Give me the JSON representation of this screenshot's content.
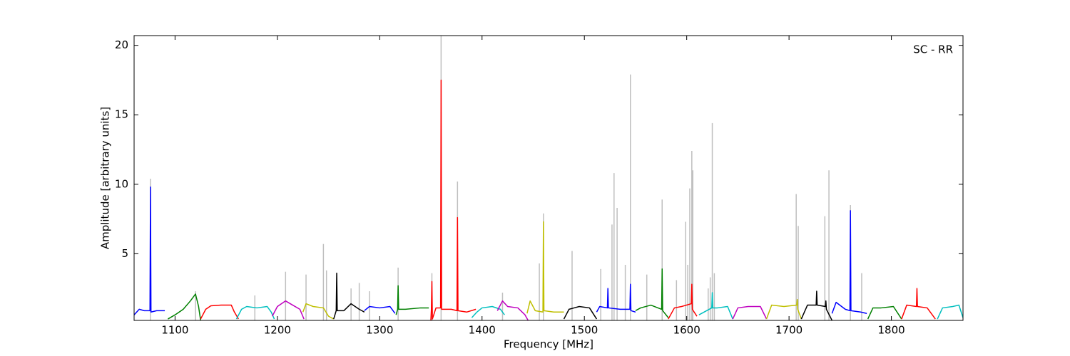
{
  "chart_data": {
    "type": "line",
    "xlabel": "Frequency [MHz]",
    "ylabel": "Amplitude [arbitrary units]",
    "annotation": "SC - RR",
    "xlim": [
      1060,
      1870
    ],
    "ylim": [
      0.2,
      20.7
    ],
    "xticks": [
      1100,
      1200,
      1300,
      1400,
      1500,
      1600,
      1700,
      1800
    ],
    "yticks": [
      5,
      10,
      15,
      20
    ],
    "series": [
      {
        "color": "#bfbfbf",
        "style": "spikes",
        "x": [
          1076,
          1120,
          1178,
          1208,
          1228,
          1245,
          1248,
          1272,
          1280,
          1290,
          1318,
          1351,
          1360,
          1376,
          1420,
          1456,
          1460,
          1488,
          1516,
          1527,
          1529,
          1532,
          1540,
          1545,
          1561,
          1576,
          1590,
          1599,
          1601,
          1603,
          1605,
          1606,
          1621,
          1623,
          1625,
          1627,
          1707,
          1709,
          1735,
          1739,
          1760,
          1771
        ],
        "values": [
          10.4,
          2.3,
          2.0,
          3.7,
          3.5,
          5.7,
          3.8,
          2.5,
          2.9,
          2.3,
          4.0,
          3.6,
          20.7,
          10.2,
          2.2,
          4.3,
          7.9,
          5.2,
          3.9,
          7.1,
          10.8,
          8.3,
          4.2,
          17.9,
          3.5,
          8.9,
          3.1,
          7.3,
          4.2,
          9.7,
          12.4,
          11.0,
          2.5,
          3.3,
          14.4,
          3.6,
          9.3,
          7.0,
          7.7,
          11.0,
          8.5,
          3.6
        ]
      },
      {
        "color": "#0000ff",
        "x": [
          1060,
          1065,
          1070,
          1075.5,
          1076,
          1076.5,
          1082,
          1090
        ],
        "values": [
          0.6,
          1.0,
          0.9,
          0.9,
          9.8,
          0.8,
          0.9,
          0.9
        ]
      },
      {
        "color": "#008000",
        "x": [
          1093,
          1100,
          1108,
          1115,
          1120,
          1123,
          1125
        ],
        "values": [
          0.3,
          0.6,
          1.0,
          1.6,
          2.1,
          1.2,
          0.2
        ]
      },
      {
        "color": "#ff0000",
        "x": [
          1125,
          1130,
          1135,
          1145,
          1155,
          1158,
          1162
        ],
        "values": [
          0.3,
          1.0,
          1.25,
          1.3,
          1.3,
          0.8,
          0.3
        ]
      },
      {
        "color": "#00bfbf",
        "x": [
          1160,
          1165,
          1170,
          1180,
          1190,
          1194,
          1197
        ],
        "values": [
          0.3,
          1.0,
          1.2,
          1.1,
          1.2,
          0.8,
          0.3
        ]
      },
      {
        "color": "#bf00bf",
        "x": [
          1195,
          1200,
          1208,
          1215,
          1222,
          1226
        ],
        "values": [
          0.5,
          1.2,
          1.6,
          1.3,
          1.0,
          0.3
        ]
      },
      {
        "color": "#bfbf00",
        "x": [
          1225,
          1228,
          1235,
          1245,
          1250,
          1255
        ],
        "values": [
          0.8,
          1.4,
          1.2,
          1.1,
          0.5,
          0.3
        ]
      },
      {
        "color": "#000000",
        "x": [
          1255,
          1257.5,
          1258,
          1258.5,
          1265,
          1272,
          1280,
          1285
        ],
        "values": [
          0.3,
          0.9,
          3.6,
          0.9,
          0.9,
          1.4,
          1.0,
          0.8
        ]
      },
      {
        "color": "#0000ff",
        "x": [
          1285,
          1290,
          1300,
          1310,
          1315
        ],
        "values": [
          0.9,
          1.2,
          1.1,
          1.2,
          0.7
        ]
      },
      {
        "color": "#008000",
        "x": [
          1316,
          1317.5,
          1318,
          1318.5,
          1325,
          1340,
          1348
        ],
        "values": [
          0.6,
          1.0,
          2.7,
          1.0,
          1.0,
          1.1,
          1.1
        ]
      },
      {
        "color": "#ff0000",
        "x": [
          1350,
          1350.5,
          1351,
          1351.5,
          1355,
          1359.5,
          1360,
          1360.5,
          1370,
          1375.5,
          1376,
          1376.5,
          1385,
          1394
        ],
        "values": [
          0.2,
          1.0,
          3.0,
          0.3,
          1.1,
          1.1,
          17.5,
          1.0,
          1.0,
          0.9,
          7.6,
          0.9,
          0.8,
          1.0
        ]
      },
      {
        "color": "#00bfbf",
        "x": [
          1390,
          1395,
          1400,
          1410,
          1418,
          1422
        ],
        "values": [
          0.4,
          0.8,
          1.1,
          1.2,
          1.0,
          0.6
        ]
      },
      {
        "color": "#bf00bf",
        "x": [
          1415,
          1420,
          1425,
          1435,
          1442,
          1445
        ],
        "values": [
          0.9,
          1.6,
          1.2,
          1.1,
          0.6,
          0.2
        ]
      },
      {
        "color": "#bfbf00",
        "x": [
          1444,
          1447,
          1452,
          1459.5,
          1460,
          1460.5,
          1470,
          1480
        ],
        "values": [
          0.7,
          1.6,
          0.9,
          0.8,
          7.3,
          0.9,
          0.8,
          0.8
        ]
      },
      {
        "color": "#000000",
        "x": [
          1480,
          1485,
          1490,
          1495,
          1505,
          1512
        ],
        "values": [
          0.3,
          1.0,
          1.1,
          1.2,
          1.1,
          0.3
        ]
      },
      {
        "color": "#0000ff",
        "x": [
          1512,
          1515,
          1522.5,
          1523,
          1523.5,
          1535,
          1544.5,
          1545,
          1545.5,
          1550
        ],
        "values": [
          0.8,
          1.2,
          1.1,
          2.5,
          1.1,
          1.0,
          1.0,
          2.8,
          0.9,
          0.8
        ]
      },
      {
        "color": "#008000",
        "x": [
          1550,
          1555,
          1565,
          1575.5,
          1576,
          1576.5,
          1582
        ],
        "values": [
          0.9,
          1.1,
          1.3,
          1.0,
          3.9,
          0.9,
          0.4
        ]
      },
      {
        "color": "#ff0000",
        "x": [
          1582,
          1588,
          1595,
          1604.5,
          1605,
          1605.5,
          1610
        ],
        "values": [
          0.3,
          1.1,
          1.2,
          1.4,
          2.8,
          1.0,
          0.5
        ]
      },
      {
        "color": "#00bfbf",
        "x": [
          1612,
          1624.5,
          1625,
          1625.5,
          1630,
          1640,
          1645
        ],
        "values": [
          0.6,
          1.1,
          2.2,
          1.1,
          1.1,
          1.2,
          0.3
        ]
      },
      {
        "color": "#bf00bf",
        "x": [
          1645,
          1650,
          1660,
          1672,
          1678
        ],
        "values": [
          0.3,
          1.1,
          1.2,
          1.2,
          0.3
        ]
      },
      {
        "color": "#bfbf00",
        "x": [
          1678,
          1683,
          1695,
          1707.5,
          1708,
          1708.5,
          1712
        ],
        "values": [
          0.3,
          1.3,
          1.2,
          1.3,
          1.7,
          1.0,
          0.3
        ]
      },
      {
        "color": "#000000",
        "x": [
          1712,
          1718,
          1726.5,
          1727,
          1727.5,
          1735.5,
          1736,
          1736.5,
          1742
        ],
        "values": [
          0.3,
          1.3,
          1.3,
          2.3,
          1.3,
          1.2,
          1.6,
          1.0,
          0.2
        ]
      },
      {
        "color": "#0000ff",
        "x": [
          1742,
          1746,
          1755,
          1759.5,
          1760,
          1760.5,
          1770,
          1776
        ],
        "values": [
          0.7,
          1.5,
          1.0,
          0.9,
          8.1,
          0.9,
          0.8,
          0.7
        ]
      },
      {
        "color": "#008000",
        "x": [
          1777,
          1782,
          1790,
          1802,
          1810
        ],
        "values": [
          0.3,
          1.1,
          1.1,
          1.2,
          0.3
        ]
      },
      {
        "color": "#ff0000",
        "x": [
          1810,
          1815,
          1824.5,
          1825,
          1825.5,
          1835,
          1843
        ],
        "values": [
          0.3,
          1.3,
          1.2,
          2.5,
          1.2,
          1.1,
          0.3
        ]
      },
      {
        "color": "#00bfbf",
        "x": [
          1845,
          1850,
          1860,
          1866,
          1870
        ],
        "values": [
          0.3,
          1.1,
          1.2,
          1.3,
          0.4
        ]
      }
    ]
  }
}
